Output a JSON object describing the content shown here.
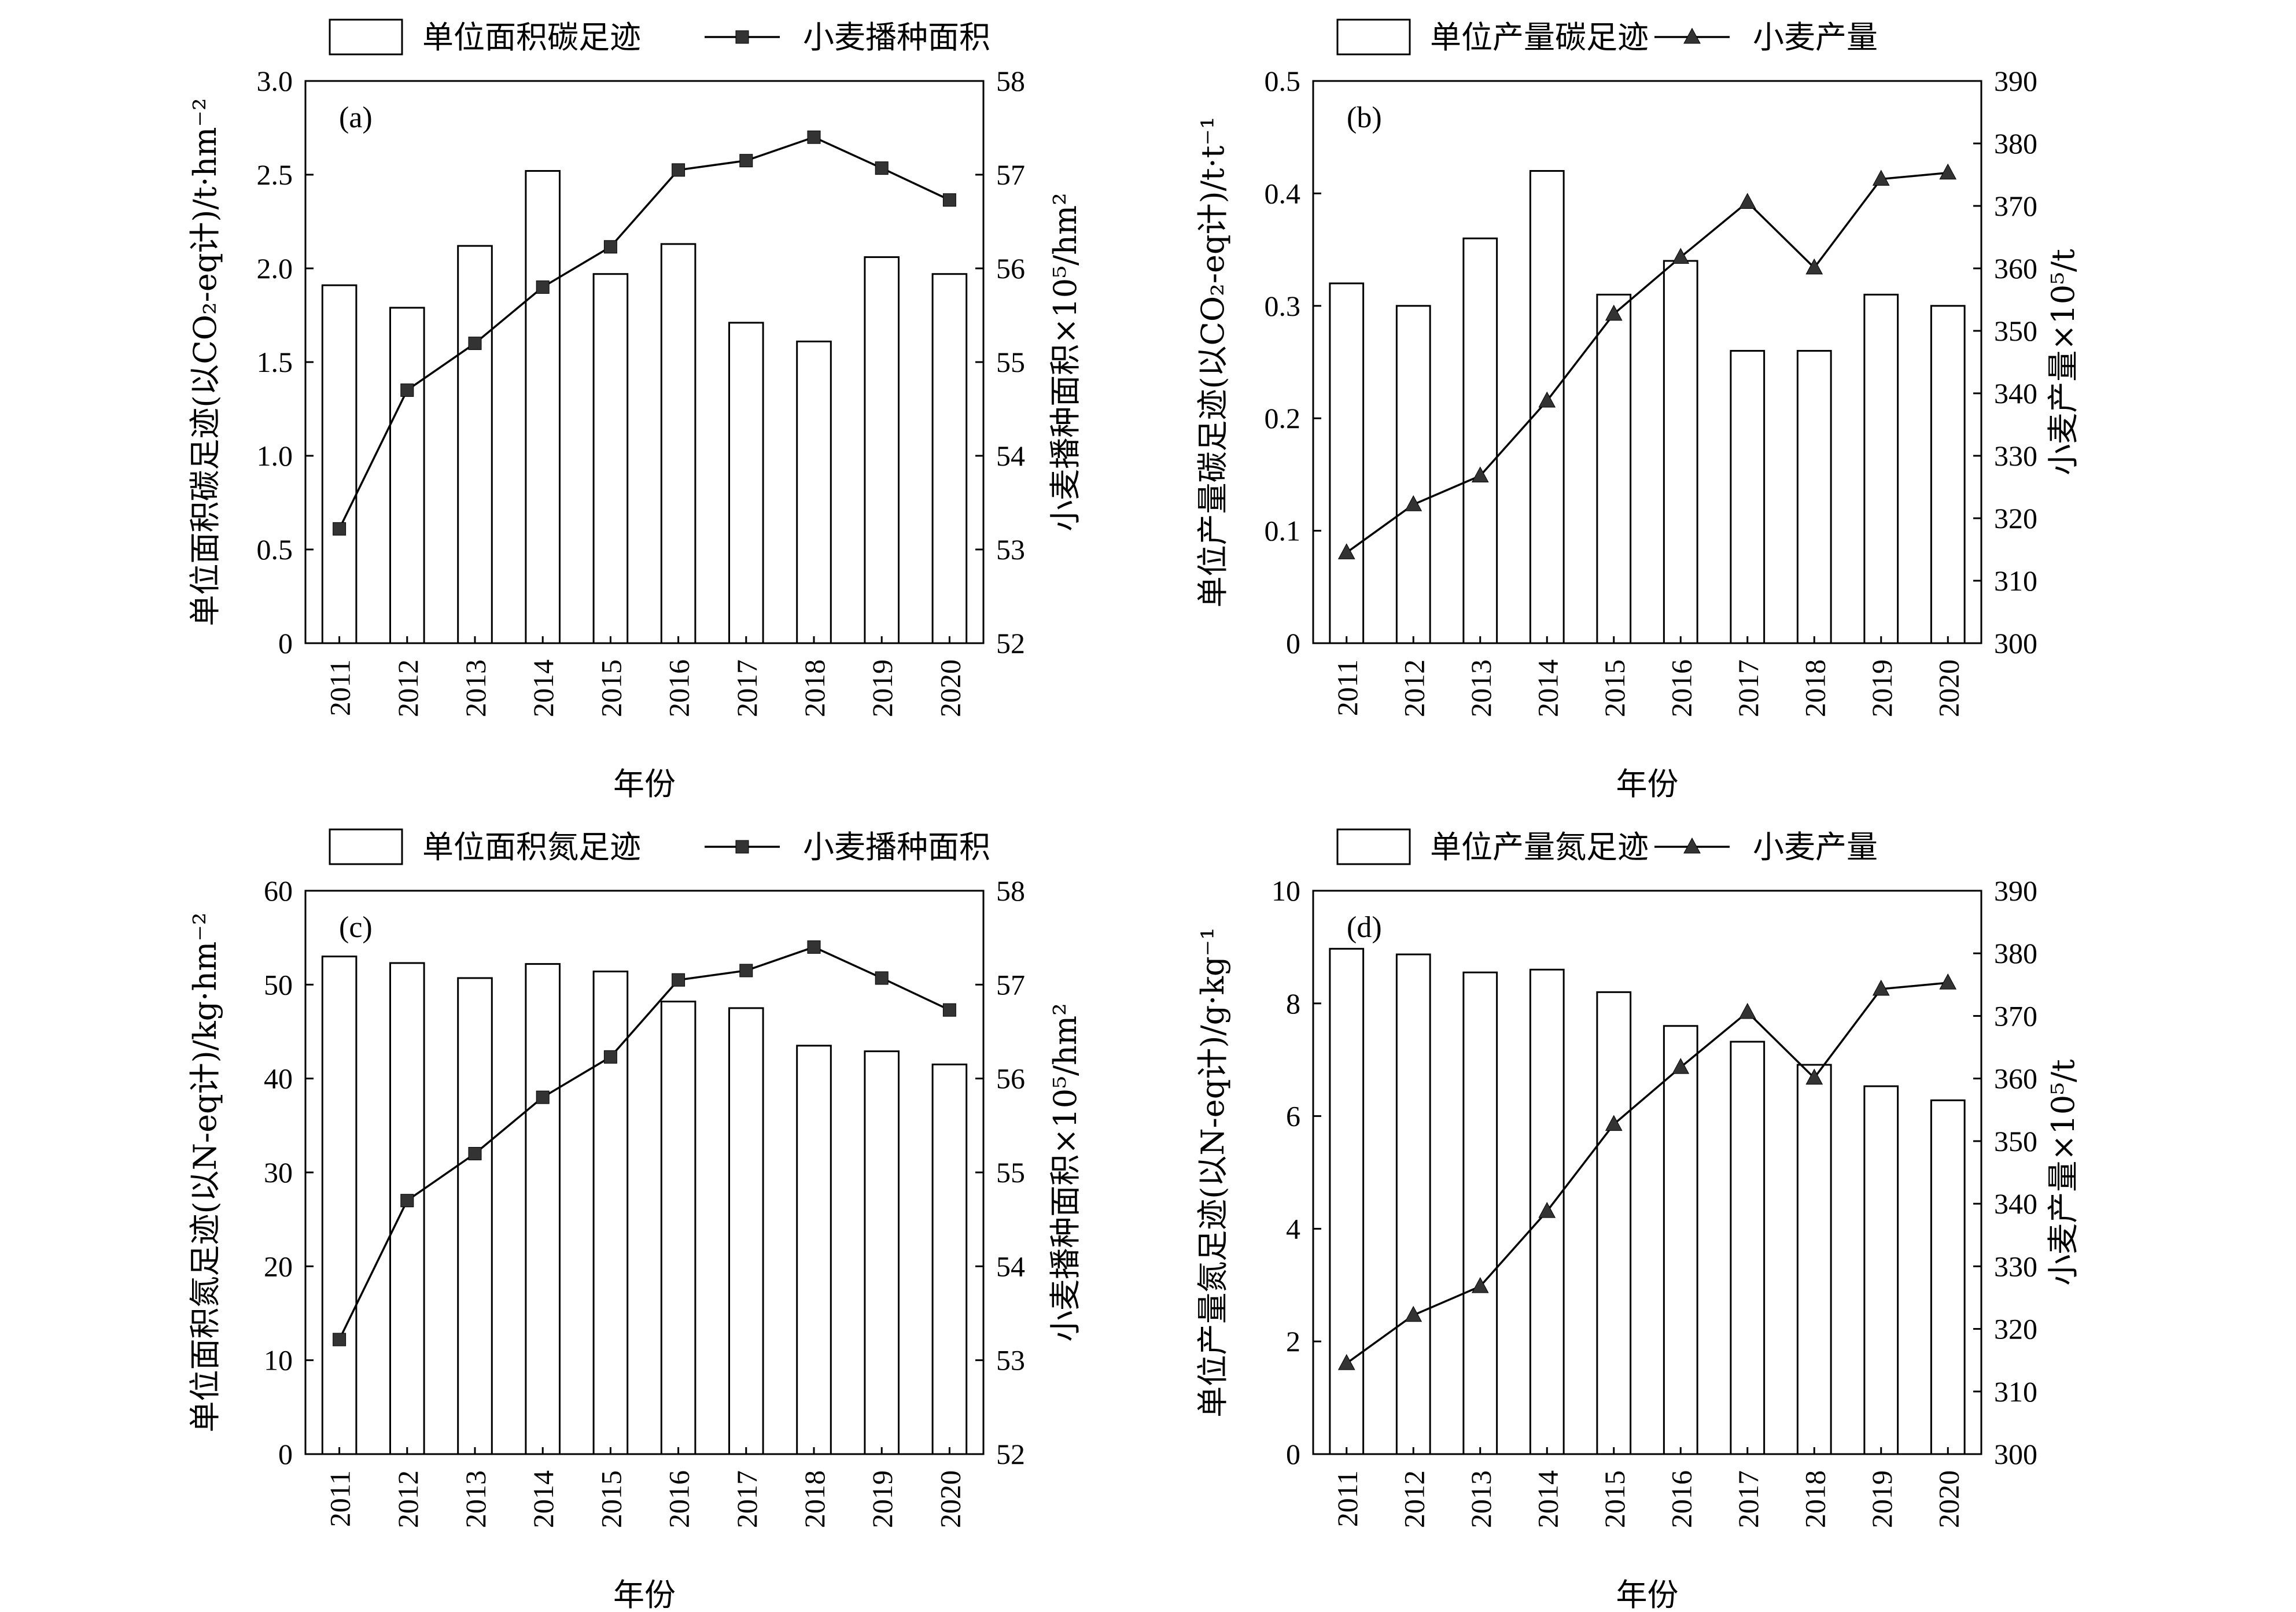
{
  "chart_data": [
    {
      "type": "bar",
      "panel_label": "(a)",
      "categories": [
        "2011",
        "2012",
        "2013",
        "2014",
        "2015",
        "2016",
        "2017",
        "2018",
        "2019",
        "2020"
      ],
      "xlabel": "年份",
      "ylabel": "单位面积碳足迹(以CO₂-eq计)/t·hm⁻²",
      "ylabel_right": "小麦播种面积×10⁵/hm²",
      "ylim": [
        0,
        3.0
      ],
      "yticks": [
        "0",
        "0.5",
        "1.0",
        "1.5",
        "2.0",
        "2.5",
        "3.0"
      ],
      "ylim_right": [
        52,
        58
      ],
      "yticks_right": [
        "52",
        "53",
        "54",
        "55",
        "56",
        "57",
        "58"
      ],
      "legend": {
        "bar": "单位面积碳足迹",
        "line": "小麦播种面积"
      },
      "marker": "square",
      "bar_values": [
        1.91,
        1.79,
        2.12,
        2.52,
        1.97,
        2.13,
        1.71,
        1.61,
        2.06,
        1.97
      ],
      "line_values": [
        53.22,
        54.7,
        55.2,
        55.8,
        56.23,
        57.05,
        57.15,
        57.4,
        57.07,
        56.73
      ]
    },
    {
      "type": "bar",
      "panel_label": "(b)",
      "categories": [
        "2011",
        "2012",
        "2013",
        "2014",
        "2015",
        "2016",
        "2017",
        "2018",
        "2019",
        "2020"
      ],
      "xlabel": "年份",
      "ylabel": "单位产量碳足迹(以CO₂-eq计)/t·t⁻¹",
      "ylabel_right": "小麦产量×10⁵/t",
      "ylim": [
        0,
        0.5
      ],
      "yticks": [
        "0",
        "0.1",
        "0.2",
        "0.3",
        "0.4",
        "0.5"
      ],
      "ylim_right": [
        300,
        390
      ],
      "yticks_right": [
        "300",
        "310",
        "320",
        "330",
        "340",
        "350",
        "360",
        "370",
        "380",
        "390"
      ],
      "legend": {
        "bar": "单位产量碳足迹",
        "line": "小麦产量"
      },
      "marker": "triangle",
      "bar_values": [
        0.32,
        0.3,
        0.36,
        0.42,
        0.31,
        0.34,
        0.26,
        0.26,
        0.31,
        0.3
      ],
      "line_values": [
        314.5,
        322.2,
        326.8,
        338.8,
        352.7,
        361.8,
        370.6,
        360.1,
        374.3,
        375.3
      ]
    },
    {
      "type": "bar",
      "panel_label": "(c)",
      "categories": [
        "2011",
        "2012",
        "2013",
        "2014",
        "2015",
        "2016",
        "2017",
        "2018",
        "2019",
        "2020"
      ],
      "xlabel": "年份",
      "ylabel": "单位面积氮足迹(以N-eq计)/kg·hm⁻²",
      "ylabel_right": "小麦播种面积×10⁵/hm²",
      "ylim": [
        0,
        60
      ],
      "yticks": [
        "0",
        "10",
        "20",
        "30",
        "40",
        "50",
        "60"
      ],
      "ylim_right": [
        52,
        58
      ],
      "yticks_right": [
        "52",
        "53",
        "54",
        "55",
        "56",
        "57",
        "58"
      ],
      "legend": {
        "bar": "单位面积氮足迹",
        "line": "小麦播种面积"
      },
      "marker": "square",
      "bar_values": [
        53.0,
        52.3,
        50.7,
        52.2,
        51.4,
        48.2,
        47.5,
        43.5,
        42.9,
        41.5
      ],
      "line_values": [
        53.22,
        54.7,
        55.2,
        55.8,
        56.23,
        57.05,
        57.15,
        57.4,
        57.07,
        56.73
      ]
    },
    {
      "type": "bar",
      "panel_label": "(d)",
      "categories": [
        "2011",
        "2012",
        "2013",
        "2014",
        "2015",
        "2016",
        "2017",
        "2018",
        "2019",
        "2020"
      ],
      "xlabel": "年份",
      "ylabel": "单位产量氮足迹(以N-eq计)/g·kg⁻¹",
      "ylabel_right": "小麦产量×10⁵/t",
      "ylim": [
        0,
        10
      ],
      "yticks": [
        "0",
        "2",
        "4",
        "6",
        "8",
        "10"
      ],
      "ylim_right": [
        300,
        390
      ],
      "yticks_right": [
        "300",
        "310",
        "320",
        "330",
        "340",
        "350",
        "360",
        "370",
        "380",
        "390"
      ],
      "legend": {
        "bar": "单位产量氮足迹",
        "line": "小麦产量"
      },
      "marker": "triangle",
      "bar_values": [
        8.97,
        8.87,
        8.55,
        8.6,
        8.2,
        7.6,
        7.32,
        6.91,
        6.53,
        6.28
      ],
      "line_values": [
        314.5,
        322.2,
        326.8,
        338.8,
        352.7,
        361.8,
        370.6,
        360.1,
        374.3,
        375.3
      ]
    }
  ]
}
